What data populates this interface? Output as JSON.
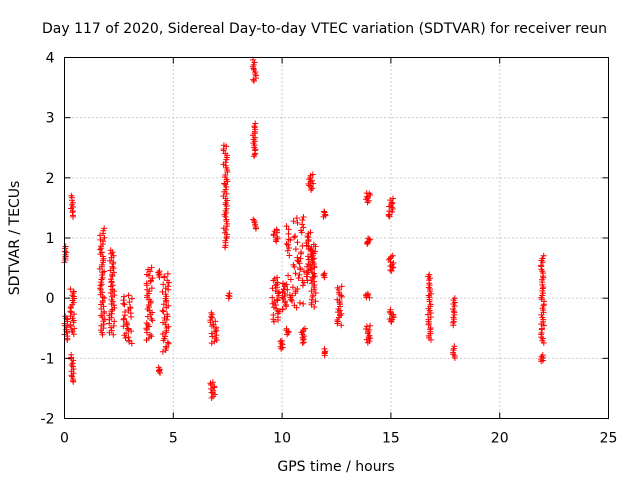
{
  "colors": {
    "background": "#ffffff",
    "data_marker": "#ff0000",
    "grid": "#a0a0a0",
    "axis": "#000000"
  },
  "chart_data": {
    "type": "scatter",
    "marker": "plus",
    "title": "Day 117 of 2020, Sidereal Day-to-day VTEC variation (SDTVAR) for receiver reun",
    "xlabel": "GPS time / hours",
    "ylabel": "SDTVAR / TECUs",
    "xlim": [
      0,
      25
    ],
    "ylim": [
      -2,
      4
    ],
    "xticks": [
      0,
      5,
      10,
      15,
      20,
      25
    ],
    "yticks": [
      -2,
      -1,
      0,
      1,
      2,
      3,
      4
    ],
    "xtick_labels": [
      "0",
      "5",
      "10",
      "15",
      "20",
      "25"
    ],
    "ytick_labels": [
      "-2",
      "-1",
      "0",
      "1",
      "2",
      "3",
      "4"
    ],
    "grid": true,
    "clusters": [
      {
        "x": [
          0.0,
          0.1
        ],
        "y": [
          0.6,
          0.85
        ]
      },
      {
        "x": [
          0.0,
          0.15
        ],
        "y": [
          -0.7,
          -0.3
        ]
      },
      {
        "x": [
          0.3,
          0.4
        ],
        "y": [
          1.35,
          1.7
        ]
      },
      {
        "x": [
          0.25,
          0.45
        ],
        "y": [
          -0.6,
          0.15
        ]
      },
      {
        "x": [
          0.3,
          0.45
        ],
        "y": [
          -1.4,
          -0.95
        ]
      },
      {
        "x": [
          1.6,
          1.85
        ],
        "y": [
          -0.6,
          1.15
        ]
      },
      {
        "x": [
          2.05,
          2.3
        ],
        "y": [
          -0.6,
          0.8
        ]
      },
      {
        "x": [
          2.7,
          3.1
        ],
        "y": [
          -0.75,
          0.05
        ]
      },
      {
        "x": [
          3.75,
          4.05
        ],
        "y": [
          -0.7,
          0.5
        ]
      },
      {
        "x": [
          4.3,
          4.4
        ],
        "y": [
          0.35,
          0.45
        ]
      },
      {
        "x": [
          4.3,
          4.4
        ],
        "y": [
          -1.25,
          -1.15
        ]
      },
      {
        "x": [
          4.5,
          4.8
        ],
        "y": [
          -0.9,
          0.4
        ]
      },
      {
        "x": [
          6.7,
          6.95
        ],
        "y": [
          -1.65,
          -1.4
        ]
      },
      {
        "x": [
          6.7,
          7.0
        ],
        "y": [
          -0.75,
          -0.25
        ]
      },
      {
        "x": [
          7.3,
          7.5
        ],
        "y": [
          0.85,
          2.55
        ]
      },
      {
        "x": [
          7.5,
          7.6
        ],
        "y": [
          0.0,
          0.08
        ]
      },
      {
        "x": [
          8.65,
          8.8
        ],
        "y": [
          2.35,
          2.9
        ]
      },
      {
        "x": [
          8.65,
          8.8
        ],
        "y": [
          3.6,
          3.95
        ]
      },
      {
        "x": [
          8.65,
          8.8
        ],
        "y": [
          1.15,
          1.3
        ]
      },
      {
        "x": [
          9.6,
          9.8
        ],
        "y": [
          0.95,
          1.15
        ]
      },
      {
        "x": [
          9.5,
          9.9
        ],
        "y": [
          -0.4,
          0.35
        ]
      },
      {
        "x": [
          9.9,
          10.05
        ],
        "y": [
          -0.85,
          -0.7
        ]
      },
      {
        "x": [
          10.0,
          10.2
        ],
        "y": [
          -0.2,
          0.25
        ]
      },
      {
        "x": [
          10.2,
          11.1
        ],
        "y": [
          -0.15,
          1.35
        ]
      },
      {
        "x": [
          10.2,
          10.3
        ],
        "y": [
          -0.6,
          -0.5
        ]
      },
      {
        "x": [
          10.85,
          11.05
        ],
        "y": [
          -0.75,
          -0.5
        ]
      },
      {
        "x": [
          11.1,
          11.4
        ],
        "y": [
          0.3,
          1.1
        ]
      },
      {
        "x": [
          11.2,
          11.45
        ],
        "y": [
          1.8,
          2.05
        ]
      },
      {
        "x": [
          11.3,
          11.55
        ],
        "y": [
          -0.15,
          0.9
        ]
      },
      {
        "x": [
          11.9,
          12.0
        ],
        "y": [
          1.35,
          1.45
        ]
      },
      {
        "x": [
          11.9,
          12.0
        ],
        "y": [
          0.35,
          0.42
        ]
      },
      {
        "x": [
          11.9,
          12.0
        ],
        "y": [
          -0.95,
          -0.85
        ]
      },
      {
        "x": [
          12.5,
          12.75
        ],
        "y": [
          -0.45,
          0.2
        ]
      },
      {
        "x": [
          13.85,
          14.05
        ],
        "y": [
          1.6,
          1.75
        ]
      },
      {
        "x": [
          13.85,
          14.05
        ],
        "y": [
          0.9,
          1.0
        ]
      },
      {
        "x": [
          13.85,
          14.05
        ],
        "y": [
          0.0,
          0.08
        ]
      },
      {
        "x": [
          13.85,
          14.05
        ],
        "y": [
          -0.75,
          -0.45
        ]
      },
      {
        "x": [
          14.9,
          15.15
        ],
        "y": [
          1.35,
          1.65
        ]
      },
      {
        "x": [
          14.9,
          15.15
        ],
        "y": [
          0.45,
          0.7
        ]
      },
      {
        "x": [
          14.9,
          15.15
        ],
        "y": [
          -0.4,
          -0.2
        ]
      },
      {
        "x": [
          16.7,
          16.85
        ],
        "y": [
          -0.7,
          0.4
        ]
      },
      {
        "x": [
          17.85,
          17.95
        ],
        "y": [
          -0.45,
          0.0
        ]
      },
      {
        "x": [
          17.85,
          17.95
        ],
        "y": [
          -1.0,
          -0.8
        ]
      },
      {
        "x": [
          21.9,
          22.05
        ],
        "y": [
          -0.75,
          0.7
        ]
      },
      {
        "x": [
          21.9,
          22.05
        ],
        "y": [
          -1.05,
          -0.95
        ]
      }
    ]
  }
}
